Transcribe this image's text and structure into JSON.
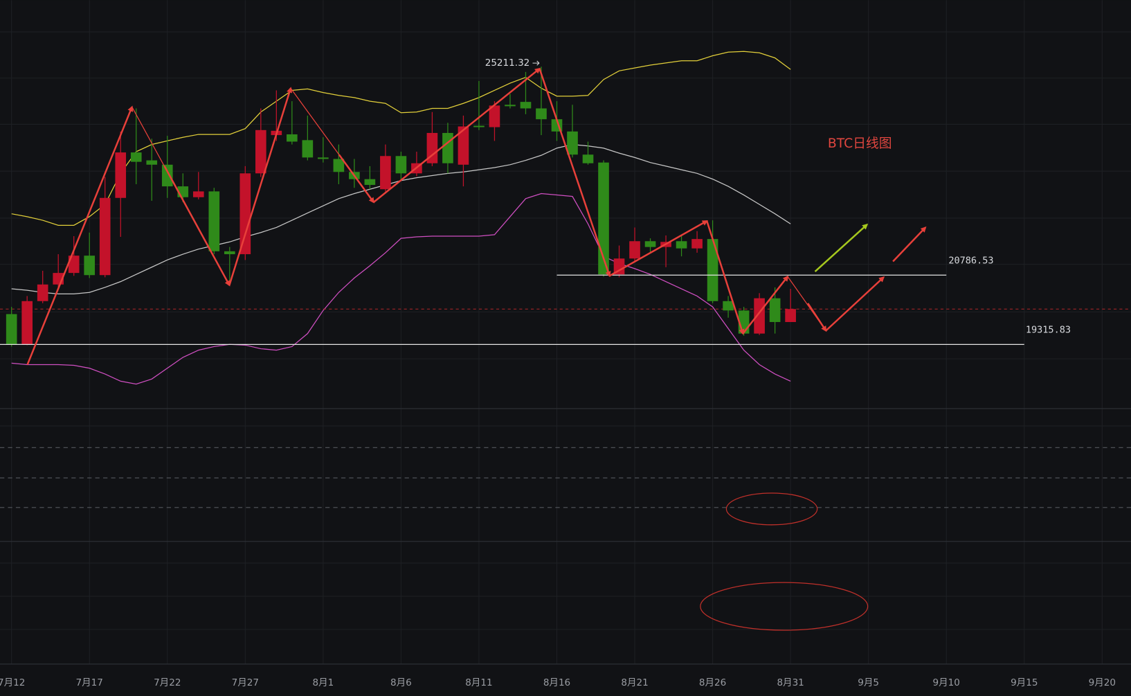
{
  "chart_data": {
    "type": "candlestick",
    "title": "BTC日线图",
    "categories": [
      "7月12",
      null,
      null,
      null,
      null,
      "7月17",
      null,
      null,
      null,
      null,
      "7月22",
      null,
      null,
      null,
      null,
      "7月27",
      null,
      null,
      null,
      null,
      "8月1",
      null,
      null,
      null,
      null,
      "8月6",
      null,
      null,
      null,
      null,
      "8月11",
      null,
      null,
      null,
      null,
      "8月16",
      null,
      null,
      null,
      null,
      "8月21",
      null,
      null,
      null,
      null,
      "8月26",
      null,
      null,
      null,
      null,
      "8月31",
      null,
      null,
      null,
      null,
      "9月5",
      null,
      null,
      null,
      null,
      "9月10",
      null,
      null,
      null,
      null,
      "9月15",
      null,
      null,
      null,
      null,
      "9月20"
    ],
    "open": [
      19960,
      19316,
      20235,
      20588,
      20833,
      21200,
      20787,
      22426,
      23391,
      23223,
      23131,
      22671,
      22441,
      22564,
      21293,
      21231,
      22947,
      23759,
      23775,
      23652,
      23284,
      23253,
      22977,
      22824,
      22610,
      23315,
      22947,
      23162,
      23805,
      23131,
      23958,
      23928,
      24403,
      24464,
      24326,
      24096,
      23836,
      23345,
      23177,
      20802,
      21139,
      21507,
      21384,
      21507,
      21354,
      21553,
      20235,
      20036,
      19546,
      20296,
      19791,
      null,
      null,
      null,
      null,
      null,
      null,
      null,
      null,
      null,
      null,
      null,
      null,
      null,
      null,
      null,
      null,
      null,
      null,
      null,
      null
    ],
    "high": [
      20113,
      20343,
      20879,
      21231,
      21614,
      21690,
      22870,
      23836,
      24326,
      23683,
      23744,
      22947,
      22977,
      22640,
      21384,
      23100,
      24326,
      24709,
      24479,
      24173,
      23713,
      23560,
      23253,
      23100,
      23560,
      23407,
      23407,
      24249,
      24020,
      24173,
      24908,
      24479,
      24632,
      25100,
      25211.32,
      24479,
      24403,
      23621,
      23223,
      21415,
      21798,
      21568,
      21629,
      21645,
      21721,
      21951,
      20343,
      20113,
      20404,
      20527,
      20496,
      null,
      null,
      null,
      null,
      null,
      null,
      null,
      null,
      null,
      null,
      null,
      null,
      null,
      null,
      null,
      null,
      null,
      null,
      null,
      null
    ],
    "low": [
      19270,
      19300,
      20190,
      20527,
      20772,
      20726,
      20741,
      21599,
      22717,
      22365,
      22426,
      22334,
      22395,
      21231,
      20603,
      21109,
      22870,
      23636,
      23560,
      23223,
      23177,
      22717,
      22640,
      22610,
      22564,
      22794,
      22886,
      23100,
      22947,
      22671,
      23866,
      23636,
      24326,
      24203,
      23759,
      23636,
      23284,
      23131,
      20756,
      20741,
      21078,
      21262,
      20955,
      21185,
      21262,
      20190,
      19883,
      19500,
      19516,
      19546,
      19791,
      null,
      null,
      null,
      null,
      null,
      null,
      null,
      null,
      null,
      null,
      null,
      null,
      null,
      null,
      null,
      null,
      null,
      null,
      null,
      null
    ],
    "close": [
      19316,
      20235,
      20588,
      20833,
      21200,
      20787,
      22426,
      23391,
      23192,
      23131,
      22671,
      22441,
      22564,
      21293,
      21231,
      22947,
      23866,
      23851,
      23621,
      23284,
      23253,
      22977,
      22824,
      22702,
      23315,
      22947,
      23162,
      23805,
      23162,
      23943,
      23928,
      24387,
      24372,
      24326,
      24096,
      23836,
      23345,
      23162,
      20802,
      21139,
      21507,
      21384,
      21492,
      21354,
      21553,
      20235,
      20036,
      19546,
      20296,
      19791,
      20067,
      null,
      null,
      null,
      null,
      null,
      null,
      null,
      null,
      null,
      null,
      null,
      null,
      null,
      null,
      null,
      null,
      null,
      null,
      null,
      null
    ],
    "up_color": "#c3122a",
    "down_color": "#2f8a1a",
    "bands": [
      {
        "color": "#e3d03a",
        "values": [
          22089,
          22028,
          21951,
          21844,
          21844,
          22028,
          22288,
          22947,
          23407,
          23560,
          23637,
          23713,
          23774,
          23774,
          23774,
          23897,
          24249,
          24479,
          24709,
          24740,
          24663,
          24602,
          24556,
          24479,
          24433,
          24234,
          24249,
          24326,
          24326,
          24433,
          24556,
          24709,
          24862,
          24985,
          24755,
          24586,
          24586,
          24602,
          24939,
          25123,
          25184,
          25245,
          25291,
          25337,
          25337,
          25444,
          25521,
          25536,
          25506,
          25398,
          25153,
          null,
          null,
          null,
          null,
          null,
          null,
          null,
          null,
          null,
          null,
          null,
          null,
          null,
          null,
          null,
          null,
          null,
          null,
          null,
          null
        ]
      },
      {
        "color": "#c8c8c8",
        "values": [
          20496,
          20465,
          20419,
          20389,
          20389,
          20419,
          20527,
          20649,
          20802,
          20956,
          21109,
          21231,
          21339,
          21415,
          21492,
          21599,
          21691,
          21798,
          21951,
          22105,
          22258,
          22411,
          22518,
          22610,
          22702,
          22794,
          22855,
          22901,
          22947,
          22978,
          23024,
          23070,
          23131,
          23223,
          23330,
          23483,
          23560,
          23529,
          23483,
          23376,
          23284,
          23177,
          23100,
          23024,
          22947,
          22825,
          22671,
          22488,
          22288,
          22089,
          21875,
          null,
          null,
          null,
          null,
          null,
          null,
          null,
          null,
          null,
          null,
          null,
          null,
          null,
          null,
          null,
          null,
          null,
          null,
          null,
          null
        ]
      },
      {
        "color": "#d04fc2",
        "values": [
          18918,
          18887,
          18887,
          18887,
          18872,
          18811,
          18688,
          18535,
          18474,
          18581,
          18811,
          19041,
          19194,
          19270,
          19316,
          19301,
          19224,
          19194,
          19270,
          19546,
          20036,
          20419,
          20726,
          20986,
          21262,
          21568,
          21599,
          21614,
          21614,
          21614,
          21614,
          21645,
          22028,
          22411,
          22518,
          22488,
          22457,
          21875,
          21185,
          21032,
          20925,
          20802,
          20649,
          20496,
          20343,
          20113,
          19653,
          19194,
          18887,
          18688,
          18535,
          null,
          null,
          null,
          null,
          null,
          null,
          null,
          null,
          null,
          null,
          null,
          null,
          null,
          null,
          null,
          null,
          null,
          null,
          null,
          null
        ]
      }
    ],
    "levels": [
      20786.53,
      19315.83
    ],
    "high_label": 25211.32,
    "ylim": [
      17968,
      26624
    ],
    "grid": true
  }
}
